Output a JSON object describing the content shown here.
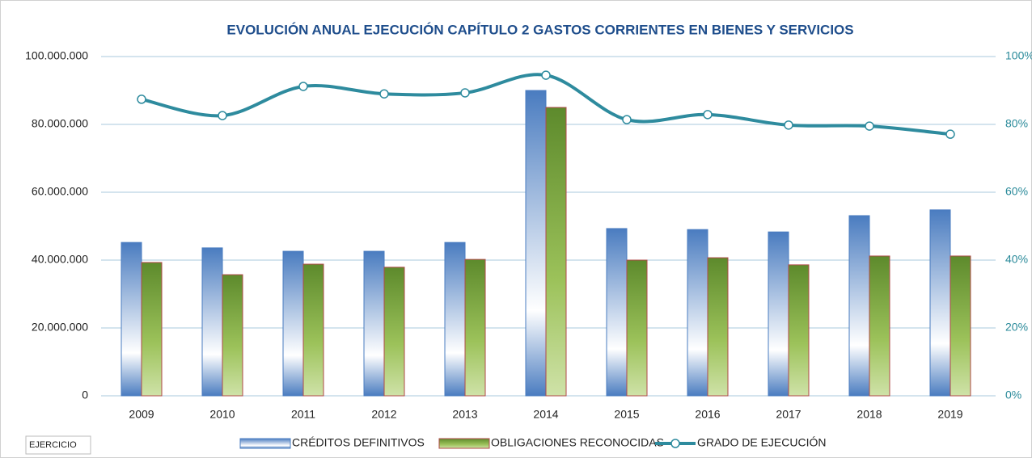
{
  "chart_data": {
    "type": "bar_line",
    "title": "EVOLUCIÓN ANUAL EJECUCIÓN CAPÍTULO 2 GASTOS CORRIENTES EN BIENES Y SERVICIOS",
    "x_label": "EJERCICIO",
    "categories": [
      "2009",
      "2010",
      "2011",
      "2012",
      "2013",
      "2014",
      "2015",
      "2016",
      "2017",
      "2018",
      "2019"
    ],
    "series": [
      {
        "name": "CRÉDITOS DEFINITIVOS",
        "color": "#4a7cc0",
        "type": "bar",
        "values": [
          45200000,
          43600000,
          42600000,
          42600000,
          45200000,
          90000000,
          49300000,
          49000000,
          48300000,
          53100000,
          54800000
        ]
      },
      {
        "name": "OBLIGACIONES RECONOCIDAS",
        "color": "#5d8a2c",
        "type": "bar",
        "values": [
          39300000,
          35700000,
          38800000,
          37900000,
          40200000,
          85000000,
          40000000,
          40700000,
          38600000,
          41200000,
          41200000
        ]
      },
      {
        "name": "GRADO DE EJECUCIÓN",
        "color": "#2e8b9e",
        "type": "line",
        "axis": "y2",
        "values": [
          87.4,
          82.6,
          91.2,
          89.0,
          89.3,
          94.5,
          81.4,
          82.9,
          79.8,
          79.5,
          77.1
        ]
      }
    ],
    "ylim": [
      0,
      100000000
    ],
    "yticks": [
      {
        "value": 0,
        "label": "0"
      },
      {
        "value": 20000000,
        "label": "20.000.000"
      },
      {
        "value": 40000000,
        "label": "40.000.000"
      },
      {
        "value": 60000000,
        "label": "60.000.000"
      },
      {
        "value": 80000000,
        "label": "80.000.000"
      },
      {
        "value": 100000000,
        "label": "100.000.000"
      }
    ],
    "y2lim": [
      0,
      100
    ],
    "y2ticks": [
      {
        "value": 0,
        "label": "0%"
      },
      {
        "value": 20,
        "label": "20%"
      },
      {
        "value": 40,
        "label": "40%"
      },
      {
        "value": 60,
        "label": "60%"
      },
      {
        "value": 80,
        "label": "80%"
      },
      {
        "value": 100,
        "label": "100%"
      }
    ],
    "grid": true
  }
}
